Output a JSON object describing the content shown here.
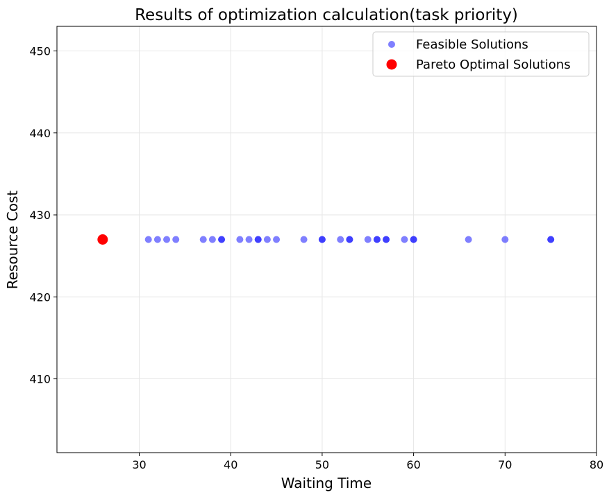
{
  "chart_data": {
    "type": "scatter",
    "title": "Results of optimization calculation(task priority)",
    "xlabel": "Waiting Time",
    "ylabel": "Resource Cost",
    "xlim": [
      21,
      80
    ],
    "ylim": [
      401,
      453
    ],
    "xticks": [
      30,
      40,
      50,
      60,
      70,
      80
    ],
    "yticks": [
      410,
      420,
      430,
      440,
      450
    ],
    "grid": true,
    "legend_position": "top-right",
    "series": [
      {
        "name": "Feasible Solutions",
        "color": "#0000ff",
        "alpha": 0.5,
        "marker": "small-circle",
        "points": [
          {
            "x": 31,
            "y": 427
          },
          {
            "x": 32,
            "y": 427
          },
          {
            "x": 33,
            "y": 427
          },
          {
            "x": 34,
            "y": 427
          },
          {
            "x": 37,
            "y": 427
          },
          {
            "x": 38,
            "y": 427
          },
          {
            "x": 39,
            "y": 427
          },
          {
            "x": 39,
            "y": 427
          },
          {
            "x": 41,
            "y": 427
          },
          {
            "x": 42,
            "y": 427
          },
          {
            "x": 43,
            "y": 427
          },
          {
            "x": 43,
            "y": 427
          },
          {
            "x": 44,
            "y": 427
          },
          {
            "x": 45,
            "y": 427
          },
          {
            "x": 48,
            "y": 427
          },
          {
            "x": 50,
            "y": 427
          },
          {
            "x": 50,
            "y": 427
          },
          {
            "x": 52,
            "y": 427
          },
          {
            "x": 53,
            "y": 427
          },
          {
            "x": 53,
            "y": 427
          },
          {
            "x": 55,
            "y": 427
          },
          {
            "x": 56,
            "y": 427
          },
          {
            "x": 56,
            "y": 427
          },
          {
            "x": 57,
            "y": 427
          },
          {
            "x": 57,
            "y": 427
          },
          {
            "x": 59,
            "y": 427
          },
          {
            "x": 60,
            "y": 427
          },
          {
            "x": 60,
            "y": 427
          },
          {
            "x": 66,
            "y": 427
          },
          {
            "x": 70,
            "y": 427
          },
          {
            "x": 75,
            "y": 427
          },
          {
            "x": 75,
            "y": 427
          }
        ]
      },
      {
        "name": "Pareto Optimal Solutions",
        "color": "#ff0000",
        "alpha": 1,
        "marker": "large-circle",
        "points": [
          {
            "x": 26,
            "y": 427
          }
        ]
      }
    ]
  }
}
